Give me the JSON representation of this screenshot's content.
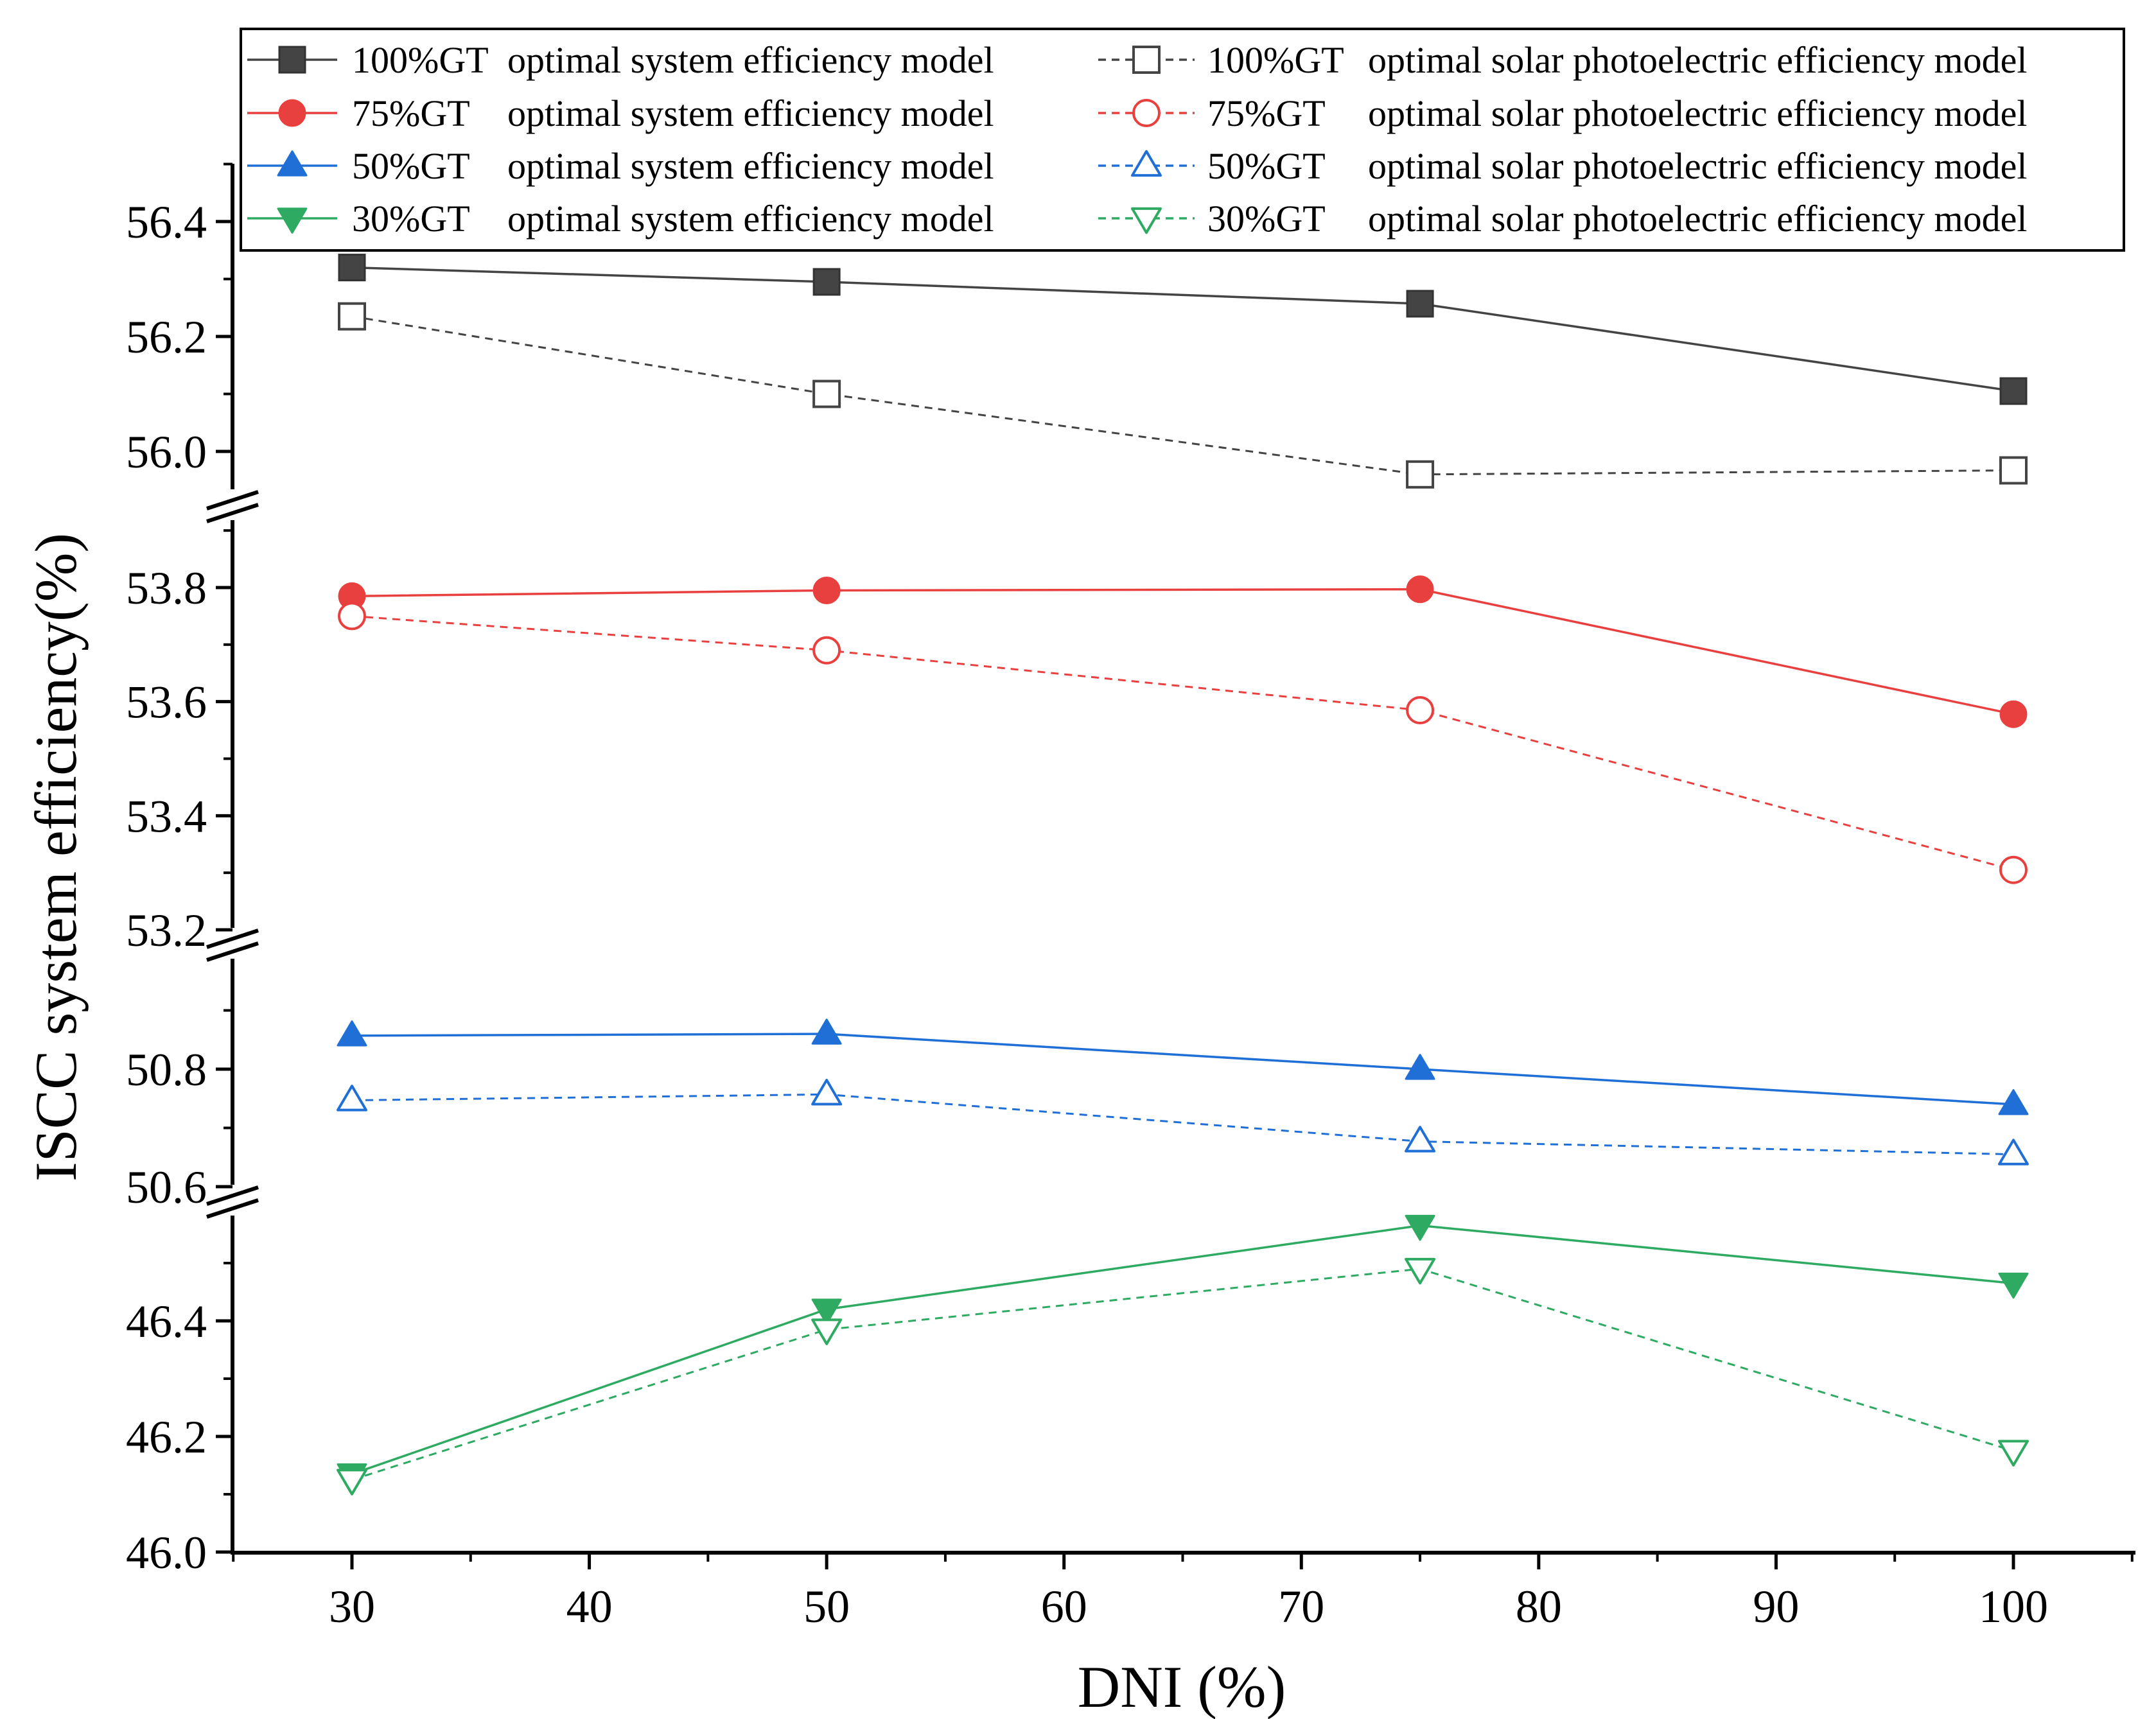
{
  "chart_data": {
    "type": "line",
    "xlabel": "DNI (%)",
    "ylabel": "ISCC system efficiency(%)",
    "x": [
      30,
      50,
      75,
      100
    ],
    "xlim": [
      25,
      105
    ],
    "xticks": [
      30,
      40,
      50,
      60,
      70,
      80,
      90,
      100
    ],
    "x_tick_labels": [
      "30",
      "40",
      "50",
      "60",
      "70",
      "80",
      "90",
      "100"
    ],
    "y_axis_broken": true,
    "y_segments": [
      {
        "range": [
          55.9,
          56.5
        ],
        "ticks": [
          56.0,
          56.2,
          56.4
        ],
        "tick_labels": [
          "56.0",
          "56.2",
          "56.4"
        ]
      },
      {
        "range": [
          53.2,
          53.9
        ],
        "ticks": [
          53.2,
          53.4,
          53.6,
          53.8
        ],
        "tick_labels": [
          "53.2",
          "53.4",
          "53.6",
          "53.8"
        ]
      },
      {
        "range": [
          50.6,
          50.95
        ],
        "ticks": [
          50.6,
          50.8
        ],
        "tick_labels": [
          "50.6",
          "50.8"
        ]
      },
      {
        "range": [
          46.0,
          46.55
        ],
        "ticks": [
          46.0,
          46.2,
          46.4
        ],
        "tick_labels": [
          "46.0",
          "46.2",
          "46.4"
        ]
      }
    ],
    "legend_position": "top-right",
    "series": [
      {
        "name": "100%GT optimal system efficiency model",
        "gt": "100%GT",
        "model": "optimal system efficiency model",
        "segment": 0,
        "color": "#444444",
        "marker": "square",
        "filled": true,
        "dashed": false,
        "values": [
          56.32,
          56.295,
          56.257,
          56.105
        ]
      },
      {
        "name": "100%GT optimal solar photoelectric efficiency model",
        "gt": "100%GT",
        "model": "optimal solar photoelectric efficiency model",
        "segment": 0,
        "color": "#444444",
        "marker": "square",
        "filled": false,
        "dashed": true,
        "values": [
          56.235,
          56.1,
          55.96,
          55.967
        ]
      },
      {
        "name": "75%GT optimal system efficiency model",
        "gt": "75%GT",
        "model": "optimal system efficiency model",
        "segment": 1,
        "color": "#e8403f",
        "marker": "circle",
        "filled": true,
        "dashed": false,
        "values": [
          53.785,
          53.795,
          53.797,
          53.578
        ]
      },
      {
        "name": "75%GT optimal solar photoelectric efficiency model",
        "gt": "75%GT",
        "model": "optimal solar photoelectric efficiency model",
        "segment": 1,
        "color": "#e8403f",
        "marker": "circle",
        "filled": false,
        "dashed": true,
        "values": [
          53.75,
          53.69,
          53.585,
          53.305
        ]
      },
      {
        "name": "50%GT optimal system efficiency model",
        "gt": "50%GT",
        "model": "optimal system efficiency model",
        "segment": 2,
        "color": "#1f6fd6",
        "marker": "triangle-up",
        "filled": true,
        "dashed": false,
        "values": [
          50.857,
          50.86,
          50.8,
          50.74
        ]
      },
      {
        "name": "50%GT optimal solar photoelectric efficiency model",
        "gt": "50%GT",
        "model": "optimal solar photoelectric efficiency model",
        "segment": 2,
        "color": "#1f6fd6",
        "marker": "triangle-up",
        "filled": false,
        "dashed": true,
        "values": [
          50.747,
          50.757,
          50.677,
          50.655
        ]
      },
      {
        "name": "30%GT optimal system efficiency model",
        "gt": "30%GT",
        "model": "optimal system efficiency model",
        "segment": 3,
        "color": "#2eaa62",
        "marker": "triangle-down",
        "filled": true,
        "dashed": false,
        "values": [
          46.135,
          46.42,
          46.565,
          46.465
        ]
      },
      {
        "name": "30%GT optimal solar photoelectric efficiency model",
        "gt": "30%GT",
        "model": "optimal solar photoelectric efficiency model",
        "segment": 3,
        "color": "#2eaa62",
        "marker": "triangle-down",
        "filled": false,
        "dashed": true,
        "values": [
          46.125,
          46.385,
          46.49,
          46.175
        ]
      }
    ]
  }
}
